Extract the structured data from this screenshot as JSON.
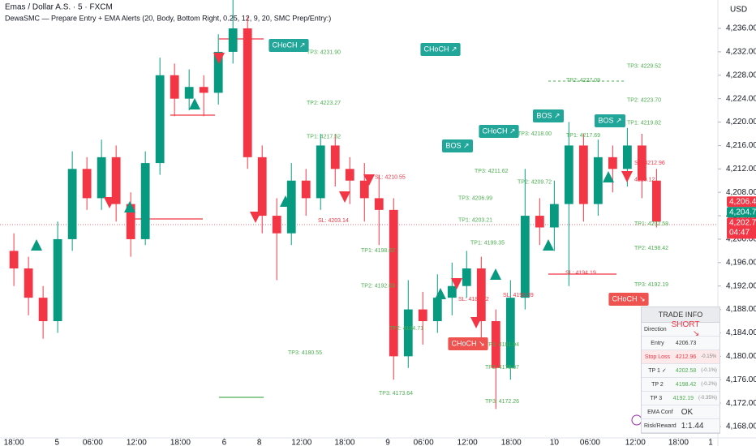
{
  "chart_data": {
    "type": "candlestick",
    "title": "Emas / Dollar A.S. · 5 · FXCM",
    "subtitle": "DewaSMC — Prepare Entry + EMA Alerts (20, Body, Bottom Right, 0.25, 12, 9, 20, SMC Prep/Entry:)",
    "y_axis_label": "USD",
    "up_color": "#089981",
    "down_color": "#f23645",
    "x": [
      0,
      2,
      4,
      6,
      8,
      10,
      12,
      14,
      16,
      18,
      20,
      22,
      24,
      26,
      28,
      30,
      32,
      34,
      36,
      38,
      40,
      42,
      44,
      46,
      48,
      50,
      52,
      54,
      56,
      58,
      60,
      62,
      64,
      66,
      68,
      70,
      72,
      74,
      76,
      78,
      80,
      82,
      84,
      86,
      88
    ],
    "open": [
      4198,
      4195,
      4190,
      4186,
      4200,
      4212,
      4207,
      4214,
      4206,
      4200,
      4213,
      4228,
      4224,
      4226,
      4225,
      4232,
      4236,
      4214,
      4204,
      4201,
      4210,
      4207,
      4216,
      4212,
      4210,
      4207,
      4205,
      4180,
      4188,
      4186,
      4190,
      4192,
      4195,
      4186,
      4178,
      4190,
      4204,
      4202,
      4206,
      4216,
      4206,
      4214,
      4212,
      4216,
      4210
    ],
    "high": [
      4201,
      4197,
      4192,
      4203,
      4215,
      4214,
      4217,
      4216,
      4208,
      4215,
      4231,
      4230,
      4229,
      4228,
      4235,
      4241,
      4238,
      4216,
      4207,
      4213,
      4212,
      4218,
      4218,
      4214,
      4213,
      4211,
      4207,
      4193,
      4191,
      4194,
      4196,
      4198,
      4197,
      4188,
      4193,
      4212,
      4207,
      4210,
      4220,
      4218,
      4217,
      4216,
      4219,
      4218,
      4212
    ],
    "low": [
      4192,
      4187,
      4183,
      4184,
      4198,
      4205,
      4205,
      4203,
      4197,
      4199,
      4211,
      4221,
      4222,
      4221,
      4223,
      4230,
      4212,
      4201,
      4193,
      4199,
      4204,
      4205,
      4209,
      4206,
      4203,
      4199,
      4176,
      4178,
      4182,
      4184,
      4187,
      4190,
      4183,
      4171,
      4176,
      4188,
      4199,
      4198,
      4192,
      4203,
      4204,
      4208,
      4209,
      4207,
      4202
    ],
    "close": [
      4195,
      4190,
      4186,
      4200,
      4212,
      4207,
      4214,
      4206,
      4200,
      4213,
      4228,
      4224,
      4226,
      4225,
      4232,
      4236,
      4214,
      4204,
      4201,
      4210,
      4207,
      4216,
      4212,
      4210,
      4207,
      4205,
      4180,
      4188,
      4186,
      4190,
      4192,
      4195,
      4186,
      4178,
      4190,
      4204,
      4202,
      4206,
      4216,
      4206,
      4214,
      4212,
      4216,
      4210,
      4203
    ],
    "xlim": [
      -1.9,
      96.4
    ],
    "ylim": [
      4166.06,
      4240.85
    ],
    "xticks": [
      {
        "value": 0,
        "label": "18:00"
      },
      {
        "value": 5.9,
        "label": "5"
      },
      {
        "value": 10.8,
        "label": "06:00"
      },
      {
        "value": 16.8,
        "label": "12:00"
      },
      {
        "value": 22.8,
        "label": "18:00"
      },
      {
        "value": 28.8,
        "label": "6"
      },
      {
        "value": 33.6,
        "label": "8"
      },
      {
        "value": 39.4,
        "label": "12:00"
      },
      {
        "value": 45.3,
        "label": "18:00"
      },
      {
        "value": 51.2,
        "label": "9"
      },
      {
        "value": 56.1,
        "label": "06:00"
      },
      {
        "value": 62.1,
        "label": "12:00"
      },
      {
        "value": 68.1,
        "label": "18:00"
      },
      {
        "value": 74,
        "label": "10"
      },
      {
        "value": 78.9,
        "label": "06:00"
      },
      {
        "value": 85.1,
        "label": "12:00"
      },
      {
        "value": 91,
        "label": "18:00"
      },
      {
        "value": 95.4,
        "label": "1"
      }
    ],
    "yticks": [
      {
        "value": 4168,
        "label": "4,168.00"
      },
      {
        "value": 4172,
        "label": "4,172.00"
      },
      {
        "value": 4176,
        "label": "4,176.00"
      },
      {
        "value": 4180,
        "label": "4,180.00"
      },
      {
        "value": 4184,
        "label": "4,184.00"
      },
      {
        "value": 4188,
        "label": "4,188.00"
      },
      {
        "value": 4192,
        "label": "4,192.00"
      },
      {
        "value": 4196,
        "label": "4,196.00"
      },
      {
        "value": 4200,
        "label": "4,200.00"
      },
      {
        "value": 4204,
        "label": "4,204.00"
      },
      {
        "value": 4208,
        "label": "4,208.00"
      },
      {
        "value": 4212,
        "label": "4,212.00"
      },
      {
        "value": 4216,
        "label": "4,216.00"
      },
      {
        "value": 4220,
        "label": "4,220.00"
      },
      {
        "value": 4224,
        "label": "4,224.00"
      },
      {
        "value": 4228,
        "label": "4,228.00"
      },
      {
        "value": 4232,
        "label": "4,232.00"
      },
      {
        "value": 4236,
        "label": "4,236.00"
      }
    ],
    "price_tags": [
      {
        "label": "4,206.40",
        "value": 4206.4,
        "color": "#f23645"
      },
      {
        "label": "4,204.76",
        "value": 4204.76,
        "color": "#089981"
      },
      {
        "label": "4,202.78",
        "value": 4202.78,
        "color": "#f23645"
      }
    ],
    "countdown": "04:47",
    "levels": [
      {
        "label": "TP3: 4231.90",
        "value": 4231.9,
        "color": "#4caf50"
      },
      {
        "label": "TP2: 4223.27",
        "value": 4223.27,
        "color": "#4caf50"
      },
      {
        "label": "TP1: 4217.52",
        "value": 4217.52,
        "color": "#4caf50"
      },
      {
        "label": "SL: 4210.55",
        "value": 4210.55,
        "color": "#f23645"
      },
      {
        "label": "SL: 4203.14",
        "value": 4203.14,
        "color": "#f23645"
      },
      {
        "label": "TP1: 4198.02",
        "value": 4198.02,
        "color": "#4caf50"
      },
      {
        "label": "TP2: 4192.03",
        "value": 4192.03,
        "color": "#4caf50"
      },
      {
        "label": "TP3: 4180.55",
        "value": 4180.55,
        "color": "#4caf50"
      },
      {
        "label": "TP3: 4173.64",
        "value": 4173.64,
        "color": "#4caf50"
      },
      {
        "label": "TP2: 4184.71",
        "value": 4184.71,
        "color": "#4caf50"
      },
      {
        "label": "TP3: 4211.62",
        "value": 4211.62,
        "color": "#4caf50"
      },
      {
        "label": "TP3: 4206.99",
        "value": 4206.99,
        "color": "#4caf50"
      },
      {
        "label": "TP2: 4209.72",
        "value": 4209.72,
        "color": "#4caf50"
      },
      {
        "label": "TP3: 4218.00",
        "value": 4218.0,
        "color": "#4caf50"
      },
      {
        "label": "TP1: 4203.21",
        "value": 4203.21,
        "color": "#4caf50"
      },
      {
        "label": "TP1: 4199.35",
        "value": 4199.35,
        "color": "#4caf50"
      },
      {
        "label": "SL: 4189.72",
        "value": 4189.72,
        "color": "#f23645"
      },
      {
        "label": "SL: 4190.39",
        "value": 4190.39,
        "color": "#f23645"
      },
      {
        "label": "TP1: 4181.94",
        "value": 4181.94,
        "color": "#4caf50"
      },
      {
        "label": "TP2: 4178.07",
        "value": 4178.07,
        "color": "#4caf50"
      },
      {
        "label": "TP3: 4172.26",
        "value": 4172.26,
        "color": "#4caf50"
      },
      {
        "label": "TP3: 4229.52",
        "value": 4229.52,
        "color": "#4caf50"
      },
      {
        "label": "TP2: 4227.09",
        "value": 4227.09,
        "color": "#4caf50"
      },
      {
        "label": "TP2: 4223.70",
        "value": 4223.7,
        "color": "#4caf50"
      },
      {
        "label": "TP1: 4219.82",
        "value": 4219.82,
        "color": "#4caf50"
      },
      {
        "label": "TP1: 4217.69",
        "value": 4217.69,
        "color": "#4caf50"
      },
      {
        "label": "SL: 4212.96",
        "value": 4212.96,
        "color": "#f23645"
      },
      {
        "label": "4210.12",
        "value": 4210.12,
        "color": "#f23645"
      },
      {
        "label": "TP1: 4202.58",
        "value": 4202.58,
        "color": "#4caf50"
      },
      {
        "label": "SL: 4194.19",
        "value": 4194.19,
        "color": "#f23645"
      },
      {
        "label": "TP2: 4198.42",
        "value": 4198.42,
        "color": "#4caf50"
      },
      {
        "label": "TP3: 4192.19",
        "value": 4192.19,
        "color": "#4caf50"
      }
    ],
    "structure": [
      {
        "label": "CHoCH ↗",
        "color": "#22a69a"
      },
      {
        "label": "CHoCH ↗",
        "color": "#22a69a"
      },
      {
        "label": "BOS ↗",
        "color": "#22a69a"
      },
      {
        "label": "CHoCH ↗",
        "color": "#22a69a"
      },
      {
        "label": "BOS ↗",
        "color": "#22a69a"
      },
      {
        "label": "BOS ↗",
        "color": "#22a69a"
      },
      {
        "label": "CHoCH ↘",
        "color": "#ef5350"
      },
      {
        "label": "CHoCH ↘",
        "color": "#ef5350"
      }
    ]
  },
  "trade_info": {
    "title": "TRADE INFO",
    "rows": [
      [
        "Direction",
        "SHORT ↘",
        ""
      ],
      [
        "Entry",
        "4206.73",
        ""
      ],
      [
        "Stop Loss",
        "4212.96",
        "-0.15%"
      ],
      [
        "TP 1 ✓",
        "4202.58",
        "(-0.1%)"
      ],
      [
        "TP 2",
        "4198.42",
        "(-0.2%)"
      ],
      [
        "TP 3",
        "4192.19",
        "(-0.35%)"
      ],
      [
        "EMA Conf",
        "OK",
        ""
      ],
      [
        "Risk/Reward",
        "1:1.44",
        ""
      ]
    ]
  }
}
